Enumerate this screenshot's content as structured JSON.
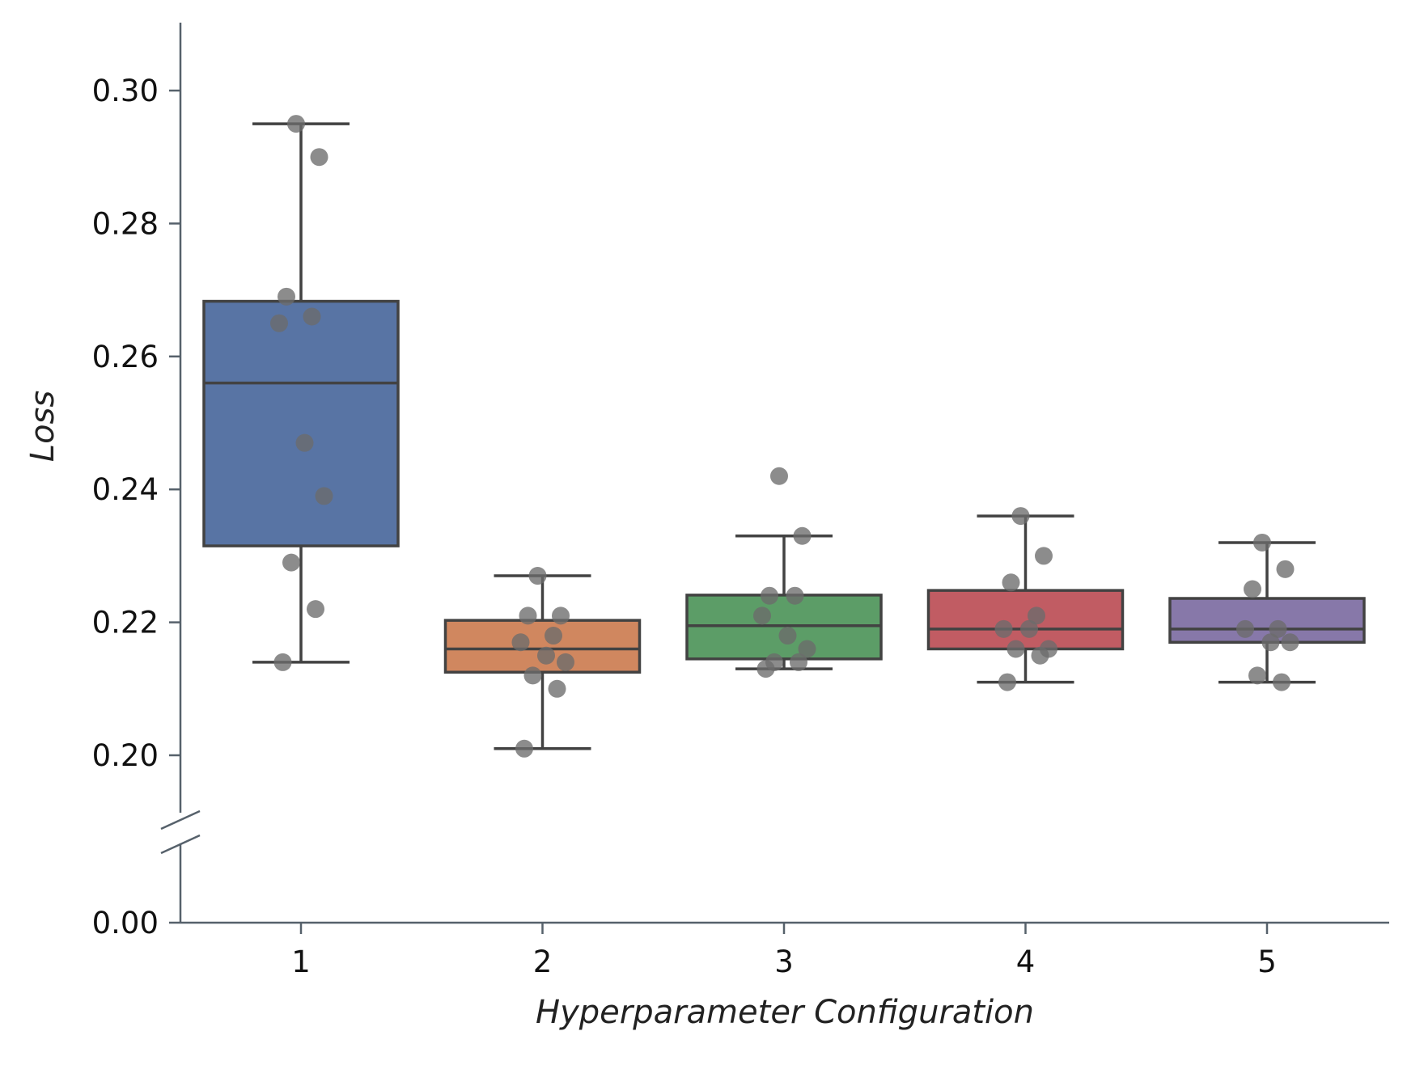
{
  "chart_data": {
    "type": "box",
    "title": "",
    "xlabel": "Hyperparameter Configuration",
    "ylabel": "Loss",
    "categories": [
      "1",
      "2",
      "3",
      "4",
      "5"
    ],
    "y_ticks": [
      "0.00",
      "0.20",
      "0.22",
      "0.24",
      "0.26",
      "0.28",
      "0.30"
    ],
    "y_tick_values": [
      0.0,
      0.2,
      0.22,
      0.24,
      0.26,
      0.28,
      0.3
    ],
    "y_axis_break": true,
    "ylim_upper_segment": [
      0.19,
      0.31
    ],
    "grid": false,
    "boxes": [
      {
        "category": "1",
        "color": "#5874a4",
        "whisker_low": 0.214,
        "q1": 0.2315,
        "median": 0.256,
        "q3": 0.2683,
        "whisker_high": 0.295,
        "points": [
          0.295,
          0.29,
          0.269,
          0.266,
          0.265,
          0.247,
          0.239,
          0.229,
          0.222,
          0.214
        ]
      },
      {
        "category": "2",
        "color": "#d0875f",
        "whisker_low": 0.201,
        "q1": 0.2125,
        "median": 0.216,
        "q3": 0.2203,
        "whisker_high": 0.227,
        "points": [
          0.227,
          0.221,
          0.221,
          0.218,
          0.217,
          0.215,
          0.214,
          0.212,
          0.21,
          0.201
        ]
      },
      {
        "category": "3",
        "color": "#5c9d67",
        "whisker_low": 0.213,
        "q1": 0.2145,
        "median": 0.2195,
        "q3": 0.2241,
        "whisker_high": 0.233,
        "points": [
          0.242,
          0.233,
          0.224,
          0.224,
          0.221,
          0.218,
          0.216,
          0.214,
          0.214,
          0.213
        ]
      },
      {
        "category": "4",
        "color": "#c15c63",
        "whisker_low": 0.211,
        "q1": 0.216,
        "median": 0.219,
        "q3": 0.2248,
        "whisker_high": 0.236,
        "points": [
          0.236,
          0.23,
          0.226,
          0.221,
          0.219,
          0.219,
          0.216,
          0.216,
          0.215,
          0.211
        ]
      },
      {
        "category": "5",
        "color": "#8778a9",
        "whisker_low": 0.211,
        "q1": 0.217,
        "median": 0.219,
        "q3": 0.2236,
        "whisker_high": 0.232,
        "points": [
          0.232,
          0.228,
          0.225,
          0.219,
          0.219,
          0.217,
          0.217,
          0.212,
          0.211
        ]
      }
    ]
  }
}
